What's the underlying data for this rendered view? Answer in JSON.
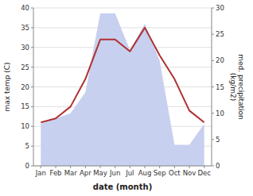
{
  "chart_data": {
    "type": "line",
    "xlabel": "date (month)",
    "ylabel": "max temp (C)",
    "y2label": "med. precipitation\n(kg/m2)",
    "categories": [
      "Jan",
      "Feb",
      "Mar",
      "Apr",
      "May",
      "Jun",
      "Jul",
      "Aug",
      "Sep",
      "Oct",
      "Nov",
      "Dec"
    ],
    "series": [
      {
        "type": "line",
        "color": "#b03030",
        "values": [
          11,
          12,
          15,
          22,
          32,
          32,
          29,
          35,
          28,
          22,
          14,
          11
        ]
      },
      {
        "type": "area",
        "axis": "y2",
        "color": "#c8d0f0",
        "values": [
          8,
          9,
          10,
          14,
          29,
          29,
          22,
          27,
          20,
          4,
          4,
          8
        ]
      }
    ],
    "ylim": [
      0,
      40
    ],
    "yticks": [
      0,
      5,
      10,
      15,
      20,
      25,
      30,
      35,
      40
    ],
    "y2lim": [
      0,
      30
    ],
    "y2ticks": [
      0,
      5,
      10,
      15,
      20,
      25,
      30
    ],
    "grid": true
  }
}
